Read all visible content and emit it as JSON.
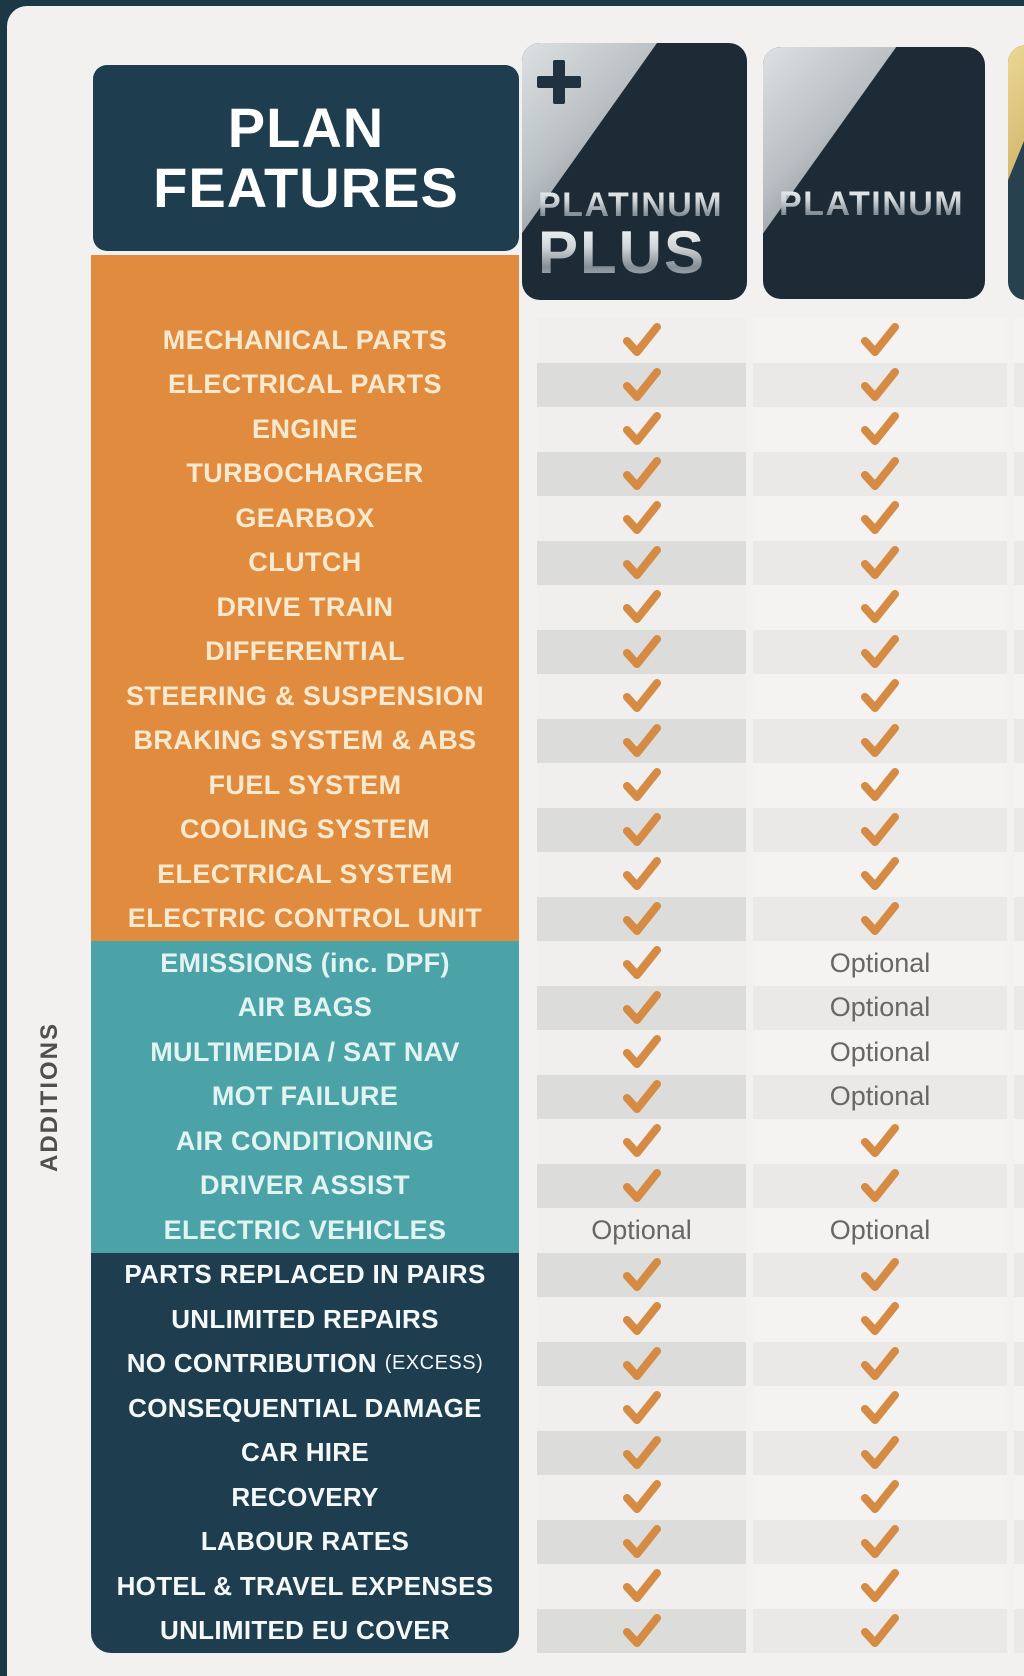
{
  "header": {
    "title_line1": "PLAN",
    "title_line2": "FEATURES"
  },
  "sidebar": {
    "additions_label": "ADDITIONS"
  },
  "optional_label": "Optional",
  "columns": [
    {
      "id": "platinum-plus",
      "name_top": "PLATINUM",
      "name_bottom": "PLUS",
      "has_plus_badge": true
    },
    {
      "id": "platinum",
      "name_top": "PLATINUM"
    },
    {
      "id": "next-plan-partial"
    }
  ],
  "colors": {
    "outer_navy": "#1c3844",
    "panel_navy": "#1e3d4e",
    "panel_orange": "#e08b3d",
    "panel_teal": "#4ba3a7",
    "check_orange": "#d58b44",
    "gold_accent": "#d0b56a"
  },
  "sections": [
    {
      "id": "standard-cover",
      "theme": "orange",
      "rows": [
        {
          "label": "MECHANICAL PARTS",
          "platinum_plus": "check",
          "platinum": "check"
        },
        {
          "label": "ELECTRICAL PARTS",
          "platinum_plus": "check",
          "platinum": "check"
        },
        {
          "label": "ENGINE",
          "platinum_plus": "check",
          "platinum": "check"
        },
        {
          "label": "TURBOCHARGER",
          "platinum_plus": "check",
          "platinum": "check"
        },
        {
          "label": "GEARBOX",
          "platinum_plus": "check",
          "platinum": "check"
        },
        {
          "label": "CLUTCH",
          "platinum_plus": "check",
          "platinum": "check"
        },
        {
          "label": "DRIVE TRAIN",
          "platinum_plus": "check",
          "platinum": "check"
        },
        {
          "label": "DIFFERENTIAL",
          "platinum_plus": "check",
          "platinum": "check"
        },
        {
          "label": "STEERING & SUSPENSION",
          "platinum_plus": "check",
          "platinum": "check"
        },
        {
          "label": "BRAKING SYSTEM & ABS",
          "platinum_plus": "check",
          "platinum": "check"
        },
        {
          "label": "FUEL SYSTEM",
          "platinum_plus": "check",
          "platinum": "check"
        },
        {
          "label": "COOLING SYSTEM",
          "platinum_plus": "check",
          "platinum": "check"
        },
        {
          "label": "ELECTRICAL SYSTEM",
          "platinum_plus": "check",
          "platinum": "check"
        },
        {
          "label": "ELECTRIC CONTROL UNIT",
          "platinum_plus": "check",
          "platinum": "check"
        }
      ]
    },
    {
      "id": "additions",
      "theme": "teal",
      "rows": [
        {
          "label": "EMISSIONS (inc. DPF)",
          "platinum_plus": "check",
          "platinum": "optional"
        },
        {
          "label": "AIR BAGS",
          "platinum_plus": "check",
          "platinum": "optional"
        },
        {
          "label": "MULTIMEDIA / SAT NAV",
          "platinum_plus": "check",
          "platinum": "optional"
        },
        {
          "label": "MOT FAILURE",
          "platinum_plus": "check",
          "platinum": "optional"
        },
        {
          "label": "AIR CONDITIONING",
          "platinum_plus": "check",
          "platinum": "check"
        },
        {
          "label": "DRIVER ASSIST",
          "platinum_plus": "check",
          "platinum": "check"
        },
        {
          "label": "ELECTRIC VEHICLES",
          "platinum_plus": "optional",
          "platinum": "optional"
        }
      ]
    },
    {
      "id": "benefits",
      "theme": "navy",
      "rows": [
        {
          "label": "PARTS REPLACED IN PAIRS",
          "platinum_plus": "check",
          "platinum": "check"
        },
        {
          "label": "UNLIMITED REPAIRS",
          "platinum_plus": "check",
          "platinum": "check"
        },
        {
          "label": "NO CONTRIBUTION",
          "label_suffix": "(EXCESS)",
          "platinum_plus": "check",
          "platinum": "check"
        },
        {
          "label": "CONSEQUENTIAL DAMAGE",
          "platinum_plus": "check",
          "platinum": "check"
        },
        {
          "label": "CAR HIRE",
          "platinum_plus": "check",
          "platinum": "check"
        },
        {
          "label": "RECOVERY",
          "platinum_plus": "check",
          "platinum": "check"
        },
        {
          "label": "LABOUR RATES",
          "platinum_plus": "check",
          "platinum": "check"
        },
        {
          "label": "HOTEL & TRAVEL EXPENSES",
          "platinum_plus": "check",
          "platinum": "check"
        },
        {
          "label": "UNLIMITED EU COVER",
          "platinum_plus": "check",
          "platinum": "check"
        }
      ]
    }
  ]
}
